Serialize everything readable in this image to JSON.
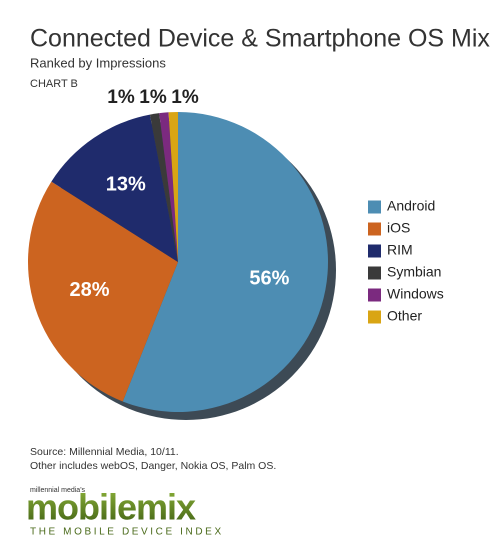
{
  "chart_data": {
    "type": "pie",
    "title": "Connected Device & Smartphone OS Mix",
    "subtitle": "Ranked by Impressions",
    "chart_label": "CHART B",
    "categories": [
      "Android",
      "iOS",
      "RIM",
      "Symbian",
      "Windows",
      "Other"
    ],
    "values": [
      56,
      28,
      13,
      1,
      1,
      1
    ],
    "value_labels": [
      "56%",
      "28%",
      "13%",
      "1%",
      "1%",
      "1%"
    ],
    "colors": [
      "#4d8db3",
      "#cc6420",
      "#1f2b6c",
      "#3a3a3a",
      "#7b2a7f",
      "#d9a514"
    ],
    "legend": "right",
    "source": "Source: Millennial Media, 10/11.",
    "note": "Other includes webOS, Danger, Nokia OS, Palm OS."
  },
  "logo": {
    "tagline": "millennial media's",
    "name": "mobilemix",
    "subtitle": "THE MOBILE DEVICE INDEX"
  }
}
